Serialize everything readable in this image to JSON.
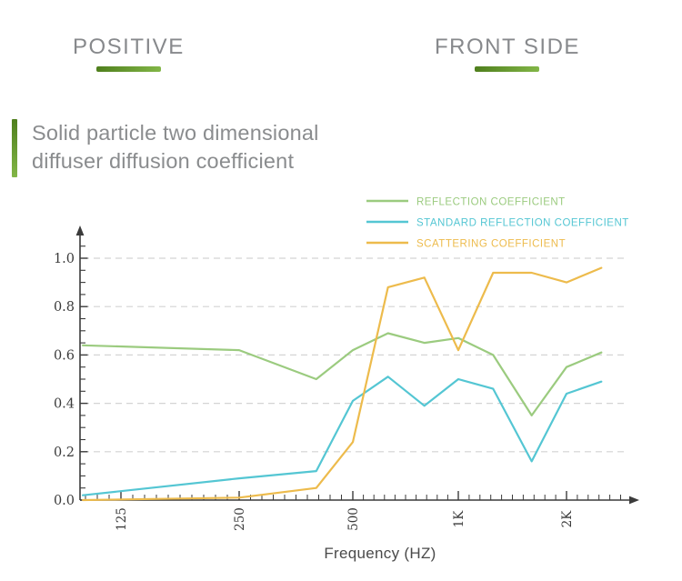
{
  "header": {
    "left_label": "POSITIVE",
    "right_label": "FRONT SIDE"
  },
  "section_title": {
    "line1": "Solid particle two dimensional",
    "line2": "diffuser diffusion coefficient"
  },
  "colors": {
    "heading_text": "#87898c",
    "title_text": "#8a8c8e",
    "accent_gradient_start": "#4f7f1d",
    "accent_gradient_end": "#82b647",
    "axis": "#3b3b3b",
    "grid": "#d4d4d4",
    "tick_label": "#3b3b3b",
    "xlabel_text": "#4a4a4a"
  },
  "chart_data": {
    "type": "line",
    "title": "",
    "xlabel": "Frequency (HZ)",
    "ylabel": "",
    "x_scale": "log",
    "x": [
      100,
      250,
      400,
      500,
      630,
      800,
      1000,
      1250,
      1600,
      2000,
      2500
    ],
    "x_ticks": {
      "values": [
        125,
        250,
        500,
        1000,
        2000
      ],
      "labels": [
        "125",
        "250",
        "500",
        "1K",
        "2K"
      ]
    },
    "y_ticks": [
      0,
      0.2,
      0.4,
      0.6,
      0.8,
      1.0
    ],
    "y_tick_labels": [
      "0.0",
      "0.2",
      "0.4",
      "0.6",
      "0.8",
      "1.0"
    ],
    "ylim": [
      0,
      1.05
    ],
    "grid": "horizontal-dashed",
    "legend_position": "top-right",
    "series": [
      {
        "name": "REFLECTION COEFFICIENT",
        "color": "#9bcb7f",
        "values": [
          0.64,
          0.62,
          0.5,
          0.62,
          0.69,
          0.65,
          0.67,
          0.6,
          0.35,
          0.55,
          0.61
        ]
      },
      {
        "name": "STANDARD REFLECTION COEFFICIENT",
        "color": "#54c6d3",
        "values": [
          0.02,
          0.09,
          0.12,
          0.41,
          0.51,
          0.39,
          0.5,
          0.46,
          0.16,
          0.44,
          0.49
        ]
      },
      {
        "name": "SCATTERING COEFFICIENT",
        "color": "#edbb4c",
        "values": [
          0.0,
          0.01,
          0.05,
          0.24,
          0.88,
          0.92,
          0.62,
          0.94,
          0.94,
          0.9,
          0.96
        ]
      }
    ]
  }
}
